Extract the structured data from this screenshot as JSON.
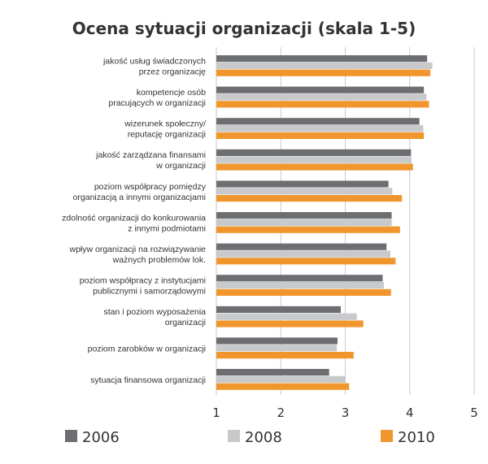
{
  "chart_data": {
    "type": "bar",
    "orientation": "horizontal",
    "title": "Ocena sytuacji organizacji (skala 1-5)",
    "categories": [
      [
        "jakość usług świadczonych",
        "przez organizację"
      ],
      [
        "kompetencje osób",
        "pracujących w organizacji"
      ],
      [
        "wizerunek społeczny/",
        "reputację organizacji"
      ],
      [
        "jakość zarządzana finansami",
        "w organizacji"
      ],
      [
        "poziom współpracy pomiędzy",
        "organizacją a innymi organizacjami"
      ],
      [
        "zdolność organizacji do konkurowania",
        "z innymi podmiotami"
      ],
      [
        "wpływ organizacji na rozwiązywanie",
        "ważnych problemów lok."
      ],
      [
        "poziom współpracy z instytucjami",
        "publicznymi i samorządowymi"
      ],
      [
        "stan i poziom wyposażenia",
        "organizacji"
      ],
      [
        "poziom zarobków w organizacji"
      ],
      [
        "sytuacja finansowa organizacji"
      ]
    ],
    "series": [
      {
        "name": "2006",
        "color": "#6d6e71",
        "values": [
          4.27,
          4.22,
          4.15,
          4.02,
          3.67,
          3.72,
          3.64,
          3.58,
          2.93,
          2.88,
          2.75
        ]
      },
      {
        "name": "2008",
        "color": "#c8c9cb",
        "values": [
          4.35,
          4.26,
          4.21,
          4.03,
          3.73,
          3.72,
          3.7,
          3.6,
          3.18,
          2.87,
          3.0
        ]
      },
      {
        "name": "2010",
        "color": "#f0962d",
        "values": [
          4.32,
          4.3,
          4.22,
          4.05,
          3.88,
          3.85,
          3.78,
          3.71,
          3.28,
          3.13,
          3.06
        ]
      }
    ],
    "xlim": [
      1,
      5
    ],
    "xticks": [
      "1",
      "2",
      "3",
      "4",
      "5"
    ],
    "grid": "vertical",
    "legend": "bottom"
  }
}
